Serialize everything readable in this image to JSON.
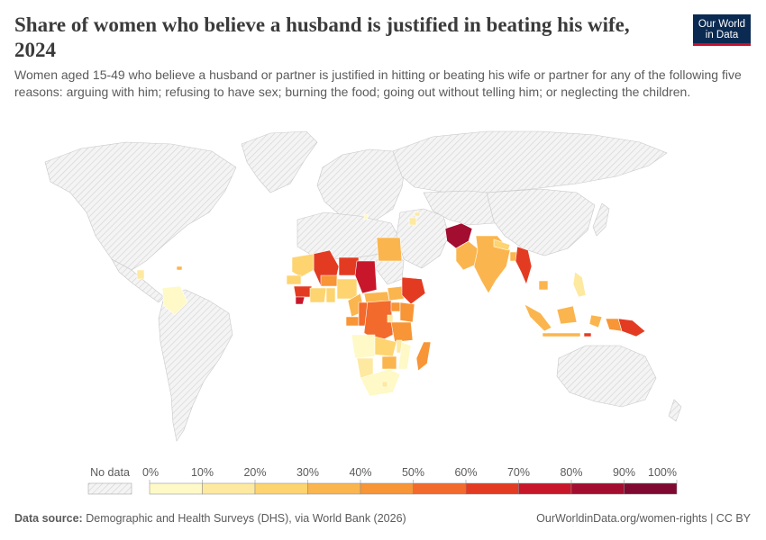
{
  "header": {
    "title": "Share of women who believe a husband is justified in beating his wife, 2024",
    "subtitle": "Women aged 15-49 who believe a husband or partner is justified in hitting or beating his wife or partner for any of the following five reasons: arguing with him; refusing to have sex; burning the food; going out without telling him; or neglecting the children.",
    "logo_line1": "Our World",
    "logo_line2": "in Data"
  },
  "legend": {
    "no_data_label": "No data",
    "ticks": [
      "0%",
      "10%",
      "20%",
      "30%",
      "40%",
      "50%",
      "60%",
      "70%",
      "80%",
      "90%",
      "100%"
    ],
    "colors": [
      "#fef9c6",
      "#fde9a0",
      "#fdd470",
      "#fbb54e",
      "#f79537",
      "#f26a2c",
      "#e33b22",
      "#c8172a",
      "#a30d2f",
      "#7f0931"
    ]
  },
  "footer": {
    "source_label": "Data source:",
    "source_text": "Demographic and Health Surveys (DHS), via World Bank (2026)",
    "url": "OurWorldinData.org/women-rights | CC BY"
  },
  "colors": {
    "no_data_fill": "#ececec",
    "border": "#c8c8c8"
  }
}
